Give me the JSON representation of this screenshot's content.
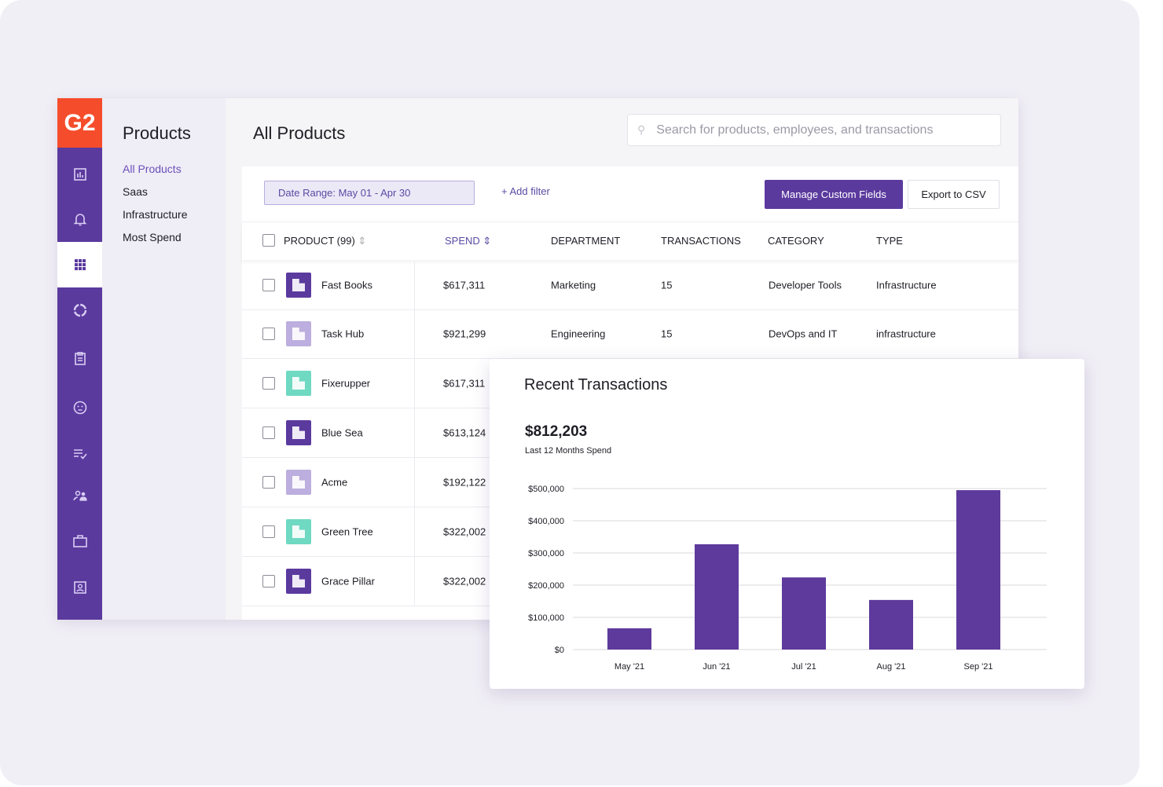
{
  "brand": {
    "logo": "G2",
    "logo_color": "#f54d2b",
    "accent": "#5b3a9e"
  },
  "rail": {
    "icons": [
      "bar-chart-icon",
      "bell-icon",
      "grid-icon",
      "donut-icon",
      "clipboard-icon",
      "face-icon",
      "checklist-icon",
      "people-icon",
      "briefcase-icon",
      "contact-card-icon"
    ],
    "active": "grid-icon"
  },
  "subnav": {
    "title": "Products",
    "items": [
      {
        "label": "All Products",
        "active": true
      },
      {
        "label": "Saas"
      },
      {
        "label": "Infrastructure"
      },
      {
        "label": "Most Spend"
      }
    ]
  },
  "header": {
    "title": "All Products",
    "search_placeholder": "Search for products, employees, and transactions"
  },
  "toolbar": {
    "date_range": "Date Range: May 01 - Apr 30",
    "add_filter": "+ Add filter",
    "manage": "Manage Custom Fields",
    "export": "Export to CSV"
  },
  "table": {
    "columns": [
      "PRODUCT (99)",
      "SPEND",
      "DEPARTMENT",
      "TRANSACTIONS",
      "CATEGORY",
      "TYPE"
    ],
    "sorted_column": "SPEND",
    "rows": [
      {
        "name": "Fast Books",
        "spend": "$617,311",
        "department": "Marketing",
        "transactions": "15",
        "category": "Developer Tools",
        "type": "Infrastructure",
        "icon_color": "#5b3a9e"
      },
      {
        "name": "Task Hub",
        "spend": "$921,299",
        "department": "Engineering",
        "transactions": "15",
        "category": "DevOps and IT",
        "type": "infrastructure",
        "icon_color": "#bcaede"
      },
      {
        "name": "Fixerupper",
        "spend": "$617,311",
        "icon_color": "#6fd9c2"
      },
      {
        "name": "Blue Sea",
        "spend": "$613,124",
        "icon_color": "#5b3a9e"
      },
      {
        "name": "Acme",
        "spend": "$192,122",
        "icon_color": "#bcaede"
      },
      {
        "name": "Green Tree",
        "spend": "$322,002",
        "icon_color": "#6fd9c2"
      },
      {
        "name": "Grace Pillar",
        "spend": "$322,002",
        "icon_color": "#5b3a9e"
      }
    ]
  },
  "card": {
    "title": "Recent Transactions",
    "total": "$812,203",
    "total_label": "Last 12 Months Spend"
  },
  "chart_data": {
    "type": "bar",
    "categories": [
      "May '21",
      "Jun '21",
      "Jul '21",
      "Aug '21",
      "Sep '21"
    ],
    "values": [
      66000,
      327000,
      224000,
      154000,
      495000
    ],
    "ylim": [
      0,
      500000
    ],
    "yticks": [
      "$0",
      "$100,000",
      "$200,000",
      "$300,000",
      "$400,000",
      "$500,000"
    ],
    "grid": true,
    "bar_color": "#5e3a9c"
  }
}
